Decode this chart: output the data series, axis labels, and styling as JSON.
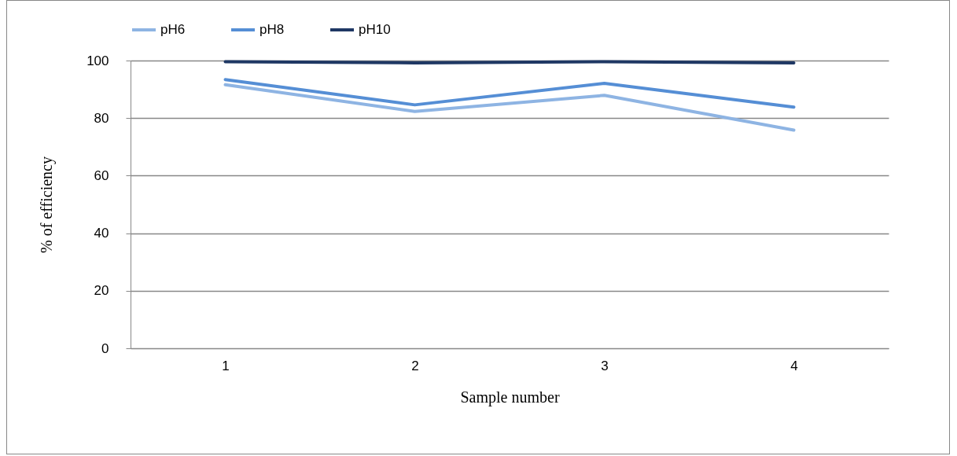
{
  "chart_data": {
    "type": "line",
    "xlabel": "Sample number",
    "ylabel": "% of efficiency",
    "categories": [
      "1",
      "2",
      "3",
      "4"
    ],
    "series": [
      {
        "name": "pH6",
        "color": "#8eb4e3",
        "values": [
          91.6,
          82.3,
          87.9,
          75.8
        ]
      },
      {
        "name": "pH8",
        "color": "#558ed5",
        "values": [
          93.4,
          84.6,
          92.1,
          83.8
        ]
      },
      {
        "name": "pH10",
        "color": "#1f3864",
        "values": [
          99.6,
          99.2,
          99.6,
          99.2
        ]
      }
    ],
    "ylim": [
      0,
      100
    ],
    "yticks": [
      0,
      20,
      40,
      60,
      80,
      100
    ],
    "grid": "y",
    "legend": "top",
    "marker": "none",
    "line_style": "solid"
  }
}
